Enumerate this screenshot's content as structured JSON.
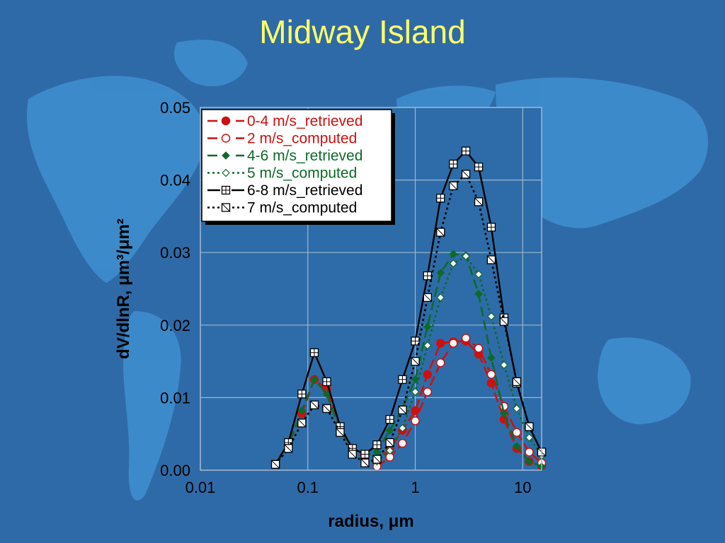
{
  "title": "Midway Island",
  "colors": {
    "background": "#2f6aa8",
    "map": "#3f8fd0",
    "title": "#ffff66",
    "plot_background": "#2d6ca8",
    "grid": "#9db7d0"
  },
  "chart_data": {
    "type": "line",
    "title": "Midway Island",
    "xlabel": "radius, μm",
    "ylabel": "dV/dlnR, μm³/μm²",
    "xscale": "log",
    "xlim": [
      0.01,
      15
    ],
    "ylim": [
      0,
      0.05
    ],
    "xticks": [
      {
        "value": 0.01,
        "label": "0.01"
      },
      {
        "value": 0.1,
        "label": "0.1"
      },
      {
        "value": 1,
        "label": "1"
      },
      {
        "value": 10,
        "label": "10"
      }
    ],
    "yticks": [
      {
        "value": 0,
        "label": "0.00"
      },
      {
        "value": 0.01,
        "label": "0.01"
      },
      {
        "value": 0.02,
        "label": "0.02"
      },
      {
        "value": 0.03,
        "label": "0.03"
      },
      {
        "value": 0.04,
        "label": "0.04"
      },
      {
        "value": 0.05,
        "label": "0.05"
      }
    ],
    "grid": true,
    "legend_position": "top-left",
    "series": [
      {
        "name": "0-4 m/s_retrieved",
        "color": "#cc1111",
        "dash": "dashed",
        "marker": "filled-circle",
        "x": [
          0.05,
          0.066,
          0.088,
          0.115,
          0.15,
          0.2,
          0.26,
          0.34,
          0.44,
          0.58,
          0.76,
          1.0,
          1.3,
          1.72,
          2.26,
          2.96,
          3.89,
          5.1,
          6.7,
          8.8,
          11.5,
          15
        ],
        "y": [
          0.0008,
          0.0035,
          0.0078,
          0.0125,
          0.0112,
          0.0058,
          0.003,
          0.0016,
          0.0012,
          0.003,
          0.0055,
          0.0082,
          0.0132,
          0.0175,
          0.0177,
          0.0178,
          0.016,
          0.012,
          0.007,
          0.003,
          0.0012,
          0.0006
        ]
      },
      {
        "name": "2 m/s_computed",
        "color": "#cc1111",
        "dash": "dashed",
        "marker": "open-circle",
        "x": [
          0.44,
          0.58,
          0.76,
          1.0,
          1.3,
          1.72,
          2.26,
          2.96,
          3.89,
          5.1,
          6.7,
          8.8,
          11.5,
          15
        ],
        "y": [
          0.0005,
          0.0018,
          0.0037,
          0.0068,
          0.0108,
          0.0148,
          0.0175,
          0.0182,
          0.0168,
          0.0132,
          0.0088,
          0.0052,
          0.0025,
          0.001
        ]
      },
      {
        "name": "4-6 m/s_retrieved",
        "color": "#0d6a28",
        "dash": "dashed",
        "marker": "filled-diamond",
        "x": [
          0.05,
          0.066,
          0.088,
          0.115,
          0.15,
          0.2,
          0.26,
          0.34,
          0.44,
          0.58,
          0.76,
          1.0,
          1.3,
          1.72,
          2.26,
          2.96,
          3.89,
          5.1,
          6.7,
          8.8,
          11.5,
          15
        ],
        "y": [
          0.0008,
          0.0035,
          0.0082,
          0.0125,
          0.0105,
          0.0055,
          0.003,
          0.002,
          0.0025,
          0.0055,
          0.0085,
          0.0125,
          0.0198,
          0.0272,
          0.0298,
          0.0296,
          0.0243,
          0.0155,
          0.0078,
          0.0033,
          0.0012,
          0.0005
        ]
      },
      {
        "name": "5 m/s_computed",
        "color": "#0d6a28",
        "dash": "dotted",
        "marker": "open-diamond",
        "x": [
          0.44,
          0.58,
          0.76,
          1.0,
          1.3,
          1.72,
          2.26,
          2.96,
          3.89,
          5.1,
          6.7,
          8.8,
          11.5,
          15
        ],
        "y": [
          0.0012,
          0.0027,
          0.0058,
          0.0108,
          0.0172,
          0.0238,
          0.0285,
          0.0295,
          0.027,
          0.0212,
          0.0145,
          0.0085,
          0.0045,
          0.002
        ]
      },
      {
        "name": "6-8 m/s_retrieved",
        "color": "#000000",
        "dash": "solid",
        "marker": "crossed-square",
        "x": [
          0.05,
          0.066,
          0.088,
          0.115,
          0.15,
          0.2,
          0.26,
          0.34,
          0.44,
          0.58,
          0.76,
          1.0,
          1.3,
          1.72,
          2.26,
          2.96,
          3.89,
          5.1,
          6.7,
          8.8,
          11.5,
          15
        ],
        "y": [
          0.0008,
          0.0038,
          0.0105,
          0.0162,
          0.0122,
          0.006,
          0.003,
          0.0022,
          0.0035,
          0.007,
          0.0125,
          0.0178,
          0.0268,
          0.0375,
          0.0422,
          0.044,
          0.0418,
          0.0335,
          0.021,
          0.012,
          0.006,
          0.0025
        ]
      },
      {
        "name": "7 m/s_computed",
        "color": "#000000",
        "dash": "dotted",
        "marker": "slashed-square",
        "x": [
          0.05,
          0.066,
          0.088,
          0.115,
          0.15,
          0.2,
          0.26,
          0.34,
          0.44,
          0.58,
          0.76,
          1.0,
          1.3,
          1.72,
          2.26,
          2.96,
          3.89,
          5.1,
          6.7,
          8.8,
          11.5,
          15
        ],
        "y": [
          0.0008,
          0.003,
          0.0065,
          0.009,
          0.0085,
          0.0052,
          0.0022,
          0.001,
          0.0015,
          0.0038,
          0.0083,
          0.015,
          0.0238,
          0.0328,
          0.0392,
          0.0408,
          0.037,
          0.029,
          0.0205,
          0.0122,
          0.006,
          0.0025
        ]
      }
    ]
  }
}
